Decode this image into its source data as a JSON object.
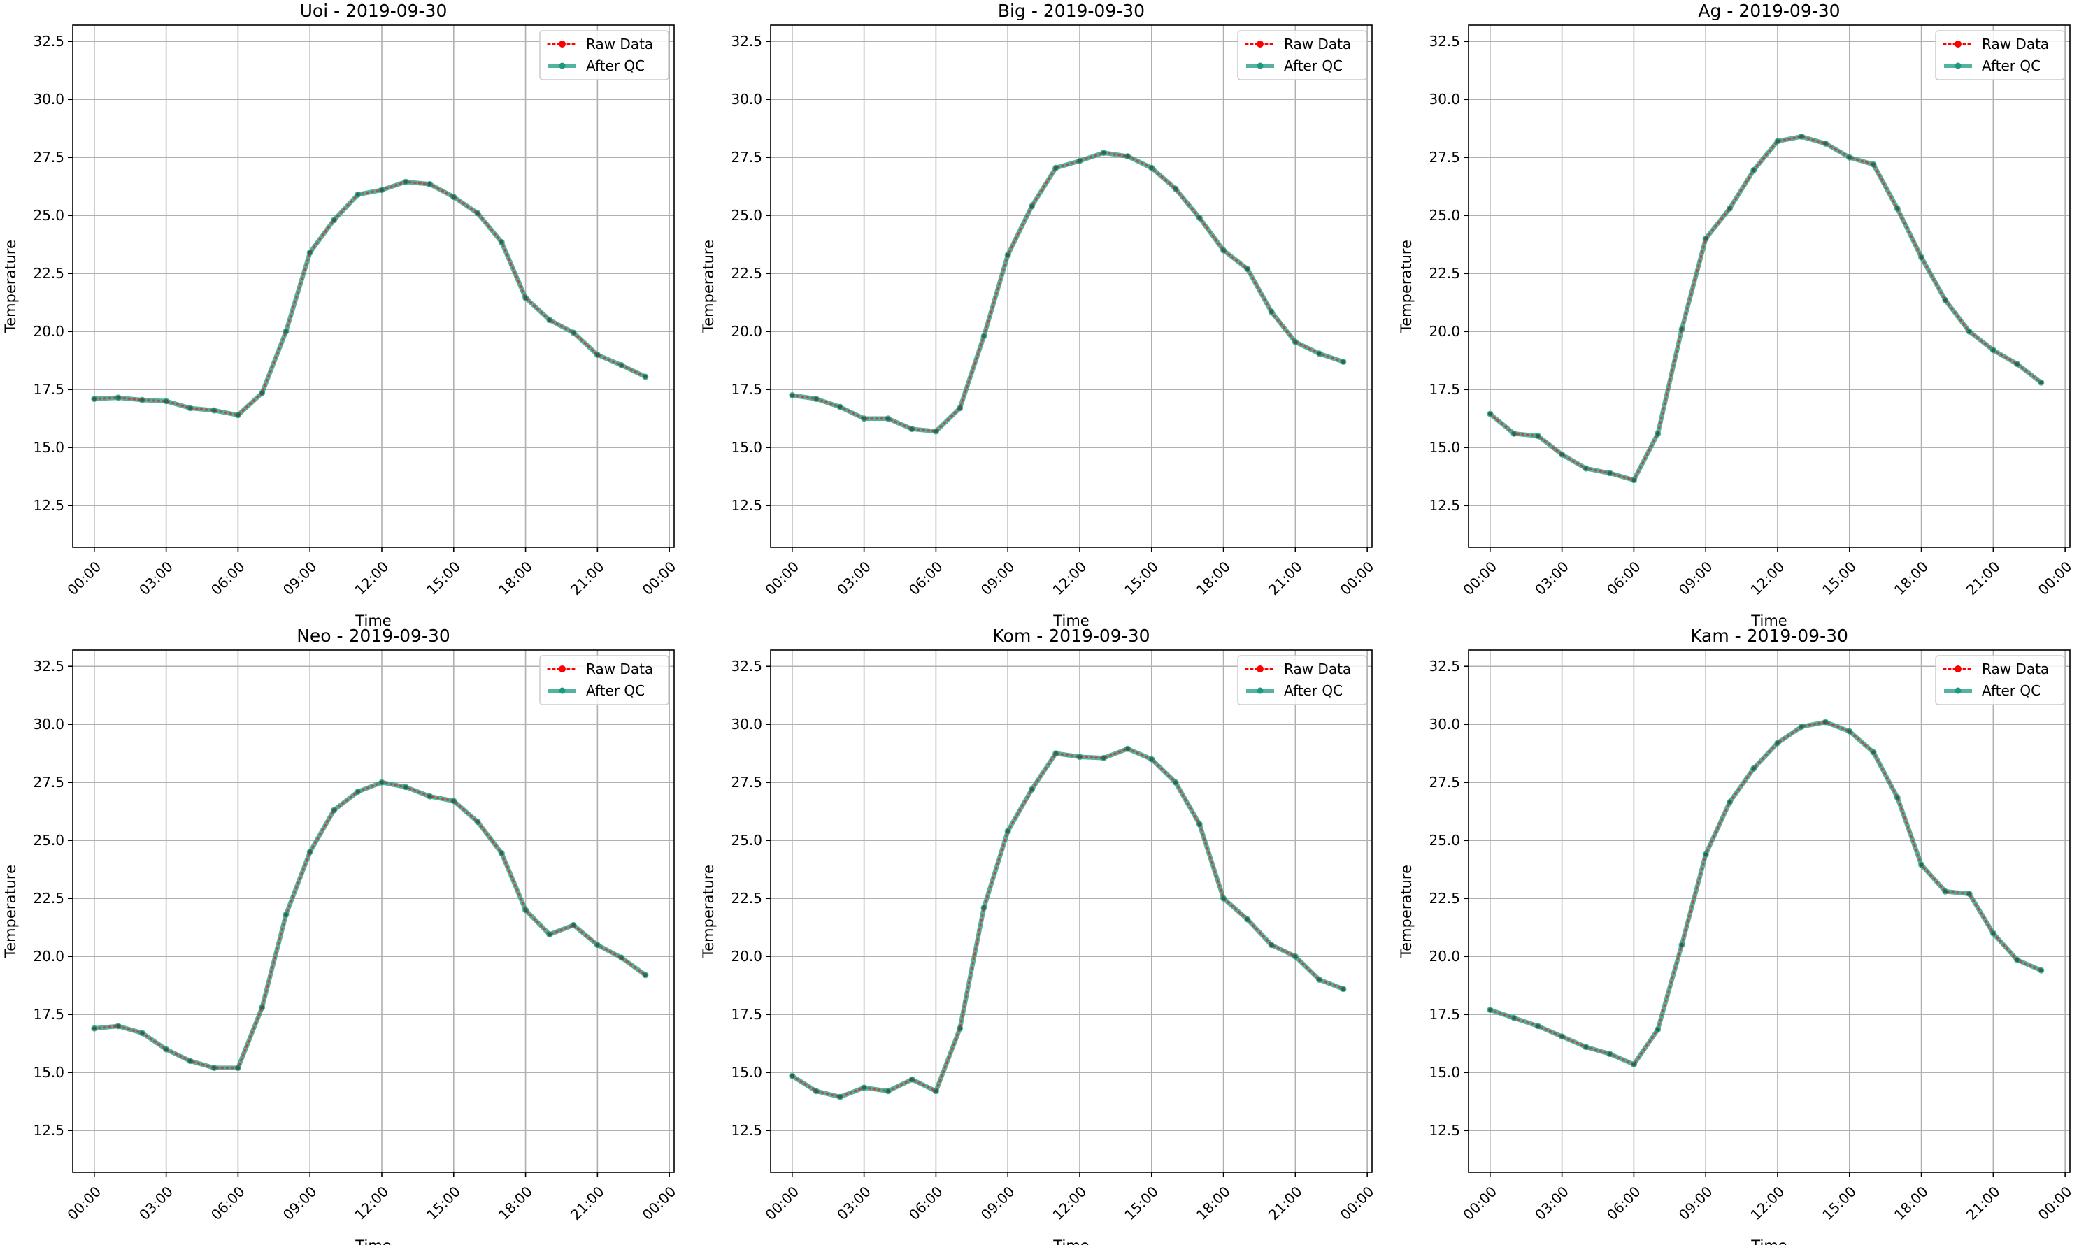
{
  "chart_data": [
    {
      "type": "line",
      "title": "Uoi - 2019-09-30",
      "xlabel": "Time",
      "ylabel": "Temperature",
      "ylim": [
        10.7,
        33.2
      ],
      "xlim": [
        -0.9,
        24.2
      ],
      "yticks": [
        "12.5",
        "15.0",
        "17.5",
        "20.0",
        "22.5",
        "25.0",
        "27.5",
        "30.0",
        "32.5"
      ],
      "xticks": [
        "00:00",
        "03:00",
        "06:00",
        "09:00",
        "12:00",
        "15:00",
        "18:00",
        "21:00",
        "00:00"
      ],
      "grid": true,
      "legend_position": "top-right",
      "x_hours": [
        0,
        1,
        2,
        3,
        4,
        5,
        6,
        7,
        8,
        9,
        10,
        11,
        12,
        13,
        14,
        15,
        16,
        17,
        18,
        19,
        20,
        21,
        22,
        23
      ],
      "series": [
        {
          "name": "Raw Data",
          "color": "#ff0000",
          "style": "dotted",
          "values": [
            17.1,
            17.15,
            17.05,
            17.0,
            16.7,
            16.6,
            16.4,
            17.35,
            20.0,
            23.4,
            24.8,
            25.9,
            26.1,
            26.45,
            26.35,
            25.8,
            25.1,
            23.85,
            21.45,
            20.5,
            19.95,
            19.0,
            18.55,
            18.05
          ]
        },
        {
          "name": "After QC",
          "color": "#1a9a7e",
          "style": "solid",
          "values": [
            17.1,
            17.15,
            17.05,
            17.0,
            16.7,
            16.6,
            16.4,
            17.35,
            20.0,
            23.4,
            24.8,
            25.9,
            26.1,
            26.45,
            26.35,
            25.8,
            25.1,
            23.85,
            21.45,
            20.5,
            19.95,
            19.0,
            18.55,
            18.05
          ]
        }
      ]
    },
    {
      "type": "line",
      "title": "Big - 2019-09-30",
      "xlabel": "Time",
      "ylabel": "Temperature",
      "ylim": [
        10.7,
        33.2
      ],
      "xlim": [
        -0.9,
        24.2
      ],
      "yticks": [
        "12.5",
        "15.0",
        "17.5",
        "20.0",
        "22.5",
        "25.0",
        "27.5",
        "30.0",
        "32.5"
      ],
      "xticks": [
        "00:00",
        "03:00",
        "06:00",
        "09:00",
        "12:00",
        "15:00",
        "18:00",
        "21:00",
        "00:00"
      ],
      "grid": true,
      "legend_position": "top-right",
      "x_hours": [
        0,
        1,
        2,
        3,
        4,
        5,
        6,
        7,
        8,
        9,
        10,
        11,
        12,
        13,
        14,
        15,
        16,
        17,
        18,
        19,
        20,
        21,
        22,
        23
      ],
      "series": [
        {
          "name": "Raw Data",
          "color": "#ff0000",
          "style": "dotted",
          "values": [
            17.25,
            17.1,
            16.75,
            16.25,
            16.25,
            15.8,
            15.7,
            16.7,
            19.8,
            23.3,
            25.4,
            27.05,
            27.35,
            27.7,
            27.55,
            27.05,
            26.15,
            24.9,
            23.5,
            22.7,
            20.85,
            19.55,
            19.05,
            18.7
          ]
        },
        {
          "name": "After QC",
          "color": "#1a9a7e",
          "style": "solid",
          "values": [
            17.25,
            17.1,
            16.75,
            16.25,
            16.25,
            15.8,
            15.7,
            16.7,
            19.8,
            23.3,
            25.4,
            27.05,
            27.35,
            27.7,
            27.55,
            27.05,
            26.15,
            24.9,
            23.5,
            22.7,
            20.85,
            19.55,
            19.05,
            18.7
          ]
        }
      ]
    },
    {
      "type": "line",
      "title": "Ag - 2019-09-30",
      "xlabel": "Time",
      "ylabel": "Temperature",
      "ylim": [
        10.7,
        33.2
      ],
      "xlim": [
        -0.9,
        24.2
      ],
      "yticks": [
        "12.5",
        "15.0",
        "17.5",
        "20.0",
        "22.5",
        "25.0",
        "27.5",
        "30.0",
        "32.5"
      ],
      "xticks": [
        "00:00",
        "03:00",
        "06:00",
        "09:00",
        "12:00",
        "15:00",
        "18:00",
        "21:00",
        "00:00"
      ],
      "grid": true,
      "legend_position": "top-right",
      "x_hours": [
        0,
        1,
        2,
        3,
        4,
        5,
        6,
        7,
        8,
        9,
        10,
        11,
        12,
        13,
        14,
        15,
        16,
        17,
        18,
        19,
        20,
        21,
        22,
        23
      ],
      "series": [
        {
          "name": "Raw Data",
          "color": "#ff0000",
          "style": "dotted",
          "values": [
            16.45,
            15.6,
            15.5,
            14.7,
            14.1,
            13.9,
            13.6,
            15.6,
            20.1,
            24.0,
            25.3,
            26.95,
            28.2,
            28.4,
            28.1,
            27.5,
            27.2,
            25.3,
            23.2,
            21.35,
            20.0,
            19.2,
            18.6,
            17.8
          ]
        },
        {
          "name": "After QC",
          "color": "#1a9a7e",
          "style": "solid",
          "values": [
            16.45,
            15.6,
            15.5,
            14.7,
            14.1,
            13.9,
            13.6,
            15.6,
            20.1,
            24.0,
            25.3,
            26.95,
            28.2,
            28.4,
            28.1,
            27.5,
            27.2,
            25.3,
            23.2,
            21.35,
            20.0,
            19.2,
            18.6,
            17.8
          ]
        }
      ]
    },
    {
      "type": "line",
      "title": "Neo - 2019-09-30",
      "xlabel": "Time",
      "ylabel": "Temperature",
      "ylim": [
        10.7,
        33.2
      ],
      "xlim": [
        -0.9,
        24.2
      ],
      "yticks": [
        "12.5",
        "15.0",
        "17.5",
        "20.0",
        "22.5",
        "25.0",
        "27.5",
        "30.0",
        "32.5"
      ],
      "xticks": [
        "00:00",
        "03:00",
        "06:00",
        "09:00",
        "12:00",
        "15:00",
        "18:00",
        "21:00",
        "00:00"
      ],
      "grid": true,
      "legend_position": "top-right",
      "x_hours": [
        0,
        1,
        2,
        3,
        4,
        5,
        6,
        7,
        8,
        9,
        10,
        11,
        12,
        13,
        14,
        15,
        16,
        17,
        18,
        19,
        20,
        21,
        22,
        23
      ],
      "series": [
        {
          "name": "Raw Data",
          "color": "#ff0000",
          "style": "dotted",
          "values": [
            16.9,
            17.0,
            16.7,
            16.0,
            15.5,
            15.2,
            15.2,
            17.8,
            21.8,
            24.5,
            26.3,
            27.1,
            27.5,
            27.3,
            26.9,
            26.7,
            25.8,
            24.45,
            22.0,
            20.95,
            21.35,
            20.5,
            19.95,
            19.2
          ]
        },
        {
          "name": "After QC",
          "color": "#1a9a7e",
          "style": "solid",
          "values": [
            16.9,
            17.0,
            16.7,
            16.0,
            15.5,
            15.2,
            15.2,
            17.8,
            21.8,
            24.5,
            26.3,
            27.1,
            27.5,
            27.3,
            26.9,
            26.7,
            25.8,
            24.45,
            22.0,
            20.95,
            21.35,
            20.5,
            19.95,
            19.2
          ]
        }
      ]
    },
    {
      "type": "line",
      "title": "Kom - 2019-09-30",
      "xlabel": "Time",
      "ylabel": "Temperature",
      "ylim": [
        10.7,
        33.2
      ],
      "xlim": [
        -0.9,
        24.2
      ],
      "yticks": [
        "12.5",
        "15.0",
        "17.5",
        "20.0",
        "22.5",
        "25.0",
        "27.5",
        "30.0",
        "32.5"
      ],
      "xticks": [
        "00:00",
        "03:00",
        "06:00",
        "09:00",
        "12:00",
        "15:00",
        "18:00",
        "21:00",
        "00:00"
      ],
      "grid": true,
      "legend_position": "top-right",
      "x_hours": [
        0,
        1,
        2,
        3,
        4,
        5,
        6,
        7,
        8,
        9,
        10,
        11,
        12,
        13,
        14,
        15,
        16,
        17,
        18,
        19,
        20,
        21,
        22,
        23
      ],
      "series": [
        {
          "name": "Raw Data",
          "color": "#ff0000",
          "style": "dotted",
          "values": [
            14.85,
            14.2,
            13.95,
            14.35,
            14.2,
            14.7,
            14.2,
            16.9,
            22.1,
            25.4,
            27.2,
            28.75,
            28.6,
            28.55,
            28.95,
            28.5,
            27.5,
            25.7,
            22.5,
            21.6,
            20.5,
            20.0,
            19.0,
            18.6
          ]
        },
        {
          "name": "After QC",
          "color": "#1a9a7e",
          "style": "solid",
          "values": [
            14.85,
            14.2,
            13.95,
            14.35,
            14.2,
            14.7,
            14.2,
            16.9,
            22.1,
            25.4,
            27.2,
            28.75,
            28.6,
            28.55,
            28.95,
            28.5,
            27.5,
            25.7,
            22.5,
            21.6,
            20.5,
            20.0,
            19.0,
            18.6
          ]
        }
      ]
    },
    {
      "type": "line",
      "title": "Kam - 2019-09-30",
      "xlabel": "Time",
      "ylabel": "Temperature",
      "ylim": [
        10.7,
        33.2
      ],
      "xlim": [
        -0.9,
        24.2
      ],
      "yticks": [
        "12.5",
        "15.0",
        "17.5",
        "20.0",
        "22.5",
        "25.0",
        "27.5",
        "30.0",
        "32.5"
      ],
      "xticks": [
        "00:00",
        "03:00",
        "06:00",
        "09:00",
        "12:00",
        "15:00",
        "18:00",
        "21:00",
        "00:00"
      ],
      "grid": true,
      "legend_position": "top-right",
      "x_hours": [
        0,
        1,
        2,
        3,
        4,
        5,
        6,
        7,
        8,
        9,
        10,
        11,
        12,
        13,
        14,
        15,
        16,
        17,
        18,
        19,
        20,
        21,
        22,
        23
      ],
      "series": [
        {
          "name": "Raw Data",
          "color": "#ff0000",
          "style": "dotted",
          "values": [
            17.7,
            17.35,
            17.0,
            16.55,
            16.1,
            15.8,
            15.35,
            16.85,
            20.5,
            24.4,
            26.65,
            28.1,
            29.2,
            29.9,
            30.1,
            29.7,
            28.8,
            26.85,
            23.95,
            22.8,
            22.7,
            21.0,
            19.85,
            19.4
          ]
        },
        {
          "name": "After QC",
          "color": "#1a9a7e",
          "style": "solid",
          "values": [
            17.7,
            17.35,
            17.0,
            16.55,
            16.1,
            15.8,
            15.35,
            16.85,
            20.5,
            24.4,
            26.65,
            28.1,
            29.2,
            29.9,
            30.1,
            29.7,
            28.8,
            26.85,
            23.95,
            22.8,
            22.7,
            21.0,
            19.85,
            19.4
          ]
        }
      ]
    }
  ]
}
